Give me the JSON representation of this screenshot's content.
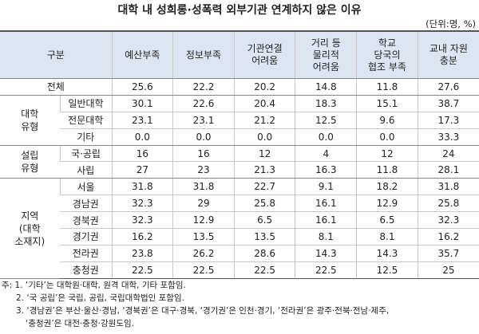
{
  "title": "대학 내 성희롱·성폭력 외부기관 연계하지 않은 이유",
  "unit": "(단위:명, %)",
  "table": {
    "corner": "구분",
    "columns": [
      [
        "예산부족"
      ],
      [
        "정보부족"
      ],
      [
        "기관연결",
        "어려움"
      ],
      [
        "거리 등",
        "물리적",
        "어려움"
      ],
      [
        "학교",
        "당국의",
        "협조 부족"
      ],
      [
        "교내 자원",
        "충분"
      ]
    ],
    "total": {
      "label": "전체",
      "values": [
        "25.6",
        "22.2",
        "20.2",
        "14.8",
        "11.8",
        "27.6"
      ]
    },
    "groups": [
      {
        "label": [
          "대학",
          "유형"
        ],
        "rows": [
          {
            "label": "일반대학",
            "values": [
              "30.1",
              "22.6",
              "20.4",
              "18.3",
              "15.1",
              "38.7"
            ]
          },
          {
            "label": "전문대학",
            "values": [
              "23.1",
              "23.1",
              "21.2",
              "12.5",
              "9.6",
              "17.3"
            ]
          },
          {
            "label": "기타",
            "values": [
              "0.0",
              "0.0",
              "0.0",
              "0.0",
              "0.0",
              "33.3"
            ]
          }
        ]
      },
      {
        "label": [
          "설립",
          "유형"
        ],
        "rows": [
          {
            "label": "국·공립",
            "values": [
              "16",
              "16",
              "12",
              "4",
              "12",
              "24"
            ]
          },
          {
            "label": "사립",
            "values": [
              "27",
              "23",
              "21.3",
              "16.3",
              "11.8",
              "28.1"
            ]
          }
        ]
      },
      {
        "label": [
          "지역",
          "(대학",
          "소재지)"
        ],
        "rows": [
          {
            "label": "서울",
            "values": [
              "31.8",
              "31.8",
              "22.7",
              "9.1",
              "18.2",
              "31.8"
            ]
          },
          {
            "label": "경남권",
            "values": [
              "32.3",
              "29",
              "25.8",
              "16.1",
              "12.9",
              "25.8"
            ]
          },
          {
            "label": "경북권",
            "values": [
              "32.3",
              "12.9",
              "6.5",
              "16.1",
              "6.5",
              "32.3"
            ]
          },
          {
            "label": "경기권",
            "values": [
              "16.2",
              "13.5",
              "13.5",
              "8.1",
              "8.1",
              "16.2"
            ]
          },
          {
            "label": "전라권",
            "values": [
              "23.8",
              "26.2",
              "28.6",
              "14.3",
              "14.3",
              "35.7"
            ]
          },
          {
            "label": "충청권",
            "values": [
              "22.5",
              "22.5",
              "22.5",
              "22.5",
              "12.5",
              "25"
            ]
          }
        ]
      }
    ]
  },
  "notes": [
    [
      "주: 1. ‘기타’는 대학원·대학, 원격 대학, 기타 포함임."
    ],
    [
      "2. ‘국 공립’은 국립, 공립, 국립대학법인 포함임."
    ],
    [
      "3. ‘경남권’은 부산·울산·경남, ‘경북권’은 대구·경북, ‘경기권’은 인천·경기, ‘전라권’은 광주·전북·전남·제주,",
      "‘충청권’은 대전·충청·강원도임."
    ]
  ]
}
